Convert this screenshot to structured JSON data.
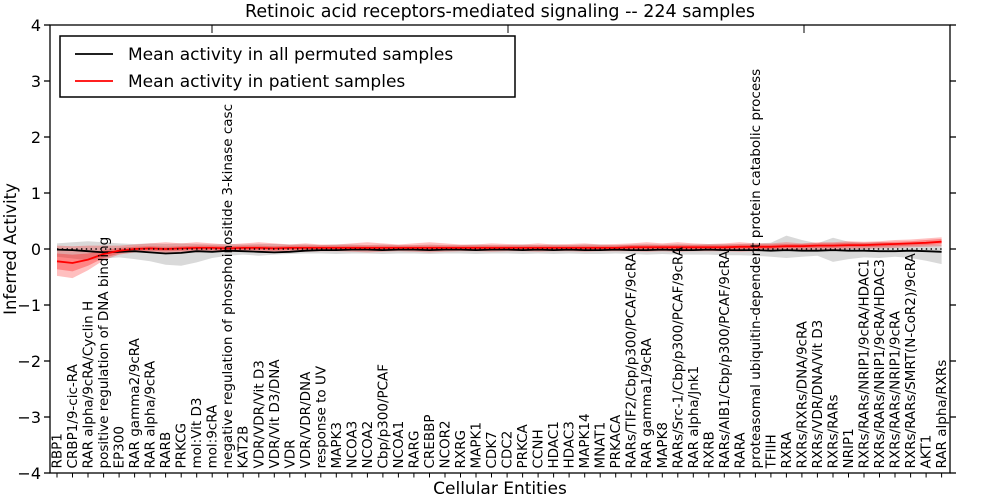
{
  "chart_data": {
    "type": "line",
    "title": "Retinoic acid receptors-mediated signaling -- 224 samples",
    "xlabel": "Cellular Entities",
    "ylabel": "Inferred Activity",
    "ylim": [
      -4,
      4
    ],
    "ytick_labels": [
      "4",
      "3",
      "2",
      "1",
      "0",
      "−1",
      "−2",
      "−3",
      "−4"
    ],
    "grid": false,
    "legend_position": "upper left",
    "legend": [
      "Mean activity in all permuted samples",
      "Mean activity in patient samples"
    ],
    "colors": {
      "permuted": "#000000",
      "patient": "#ff0000",
      "permuted_band": "#000000",
      "patient_band": "#ff0000",
      "zero_line": "#000000",
      "frame": "#000000",
      "background": "#ffffff"
    },
    "categories": [
      "RBP1",
      "CRBP1/9-cic-RA",
      "RAR alpha/9cRA/Cyclin H",
      "positive regulation of DNA binding",
      "EP300",
      "RAR gamma2/9cRA",
      "RAR alpha/9cRA",
      "RARB",
      "PRKCG",
      "mol:Vit D3",
      "mol:9cRA",
      "negative regulation of phosphoinositide 3-kinase casc",
      "KAT2B",
      "VDR/VDR/Vit D3",
      "VDR/Vit D3/DNA",
      "VDR",
      "VDR/VDR/DNA",
      "response to UV",
      "MAPK3",
      "NCOA3",
      "NCOA2",
      "Cbp/p300/PCAF",
      "NCOA1",
      "RARG",
      "CREBBP",
      "NCOR2",
      "RXRG",
      "MAPK1",
      "CDK7",
      "CDC2",
      "PRKCA",
      "CCNH",
      "HDAC1",
      "HDAC3",
      "MAPK14",
      "MNAT1",
      "PRKACA",
      "RARs/TIF2/Cbp/p300/PCAF/9cRA",
      "RAR gamma1/9cRA",
      "MAPK8",
      "RARs/Src-1/Cbp/p300/PCAF/9cRA",
      "RAR alpha/Jnk1",
      "RXRB",
      "RARs/AIB1/Cbp/p300/PCAF/9cRA",
      "RARA",
      "proteasomal ubiquitin-dependent protein catabolic process",
      "TFIIH",
      "RXRA",
      "RXRs/RXRs/DNA/9cRA",
      "RXRs/VDR/DNA/Vit D3",
      "RXRs/RARs",
      "NRIP1",
      "RXRs/RARs/NRIP1/9cRA/HDAC1",
      "RXRs/RARs/NRIP1/9cRA/HDAC3",
      "RXRs/RARs/NRIP1/9cRA",
      "RXRs/RARs/SMRT(N-CoR2)/9cRA",
      "AKT1",
      "RAR alpha/RXRs"
    ],
    "series": [
      {
        "name": "Mean activity in all permuted samples",
        "color": "#000000",
        "values": [
          -0.01,
          -0.02,
          -0.04,
          -0.06,
          -0.05,
          -0.04,
          -0.06,
          -0.08,
          -0.07,
          -0.04,
          -0.05,
          -0.03,
          -0.04,
          -0.05,
          -0.06,
          -0.05,
          -0.03,
          -0.02,
          -0.02,
          -0.01,
          -0.01,
          -0.02,
          -0.01,
          -0.01,
          -0.02,
          -0.01,
          -0.01,
          -0.02,
          -0.01,
          -0.01,
          -0.02,
          -0.01,
          -0.02,
          -0.01,
          -0.02,
          -0.02,
          -0.01,
          -0.02,
          -0.02,
          -0.01,
          -0.02,
          -0.02,
          -0.01,
          -0.02,
          -0.02,
          -0.02,
          -0.03,
          -0.02,
          -0.03,
          -0.03,
          -0.02,
          -0.03,
          -0.03,
          -0.04,
          -0.04,
          -0.03,
          -0.04,
          -0.05
        ]
      },
      {
        "name": "Mean activity in patient samples",
        "color": "#ff0000",
        "values": [
          -0.22,
          -0.25,
          -0.19,
          -0.09,
          -0.03,
          0.0,
          0.01,
          0.0,
          0.01,
          0.02,
          0.02,
          0.01,
          0.02,
          0.02,
          0.01,
          0.02,
          0.02,
          0.02,
          0.02,
          0.02,
          0.02,
          0.02,
          0.02,
          0.02,
          0.02,
          0.02,
          0.02,
          0.02,
          0.02,
          0.02,
          0.02,
          0.02,
          0.02,
          0.02,
          0.02,
          0.02,
          0.02,
          0.03,
          0.03,
          0.03,
          0.03,
          0.03,
          0.03,
          0.03,
          0.04,
          0.04,
          0.04,
          0.05,
          0.05,
          0.06,
          0.06,
          0.07,
          0.07,
          0.08,
          0.09,
          0.1,
          0.11,
          0.13
        ]
      }
    ],
    "bands": {
      "permuted": {
        "upper": [
          0.1,
          0.12,
          0.14,
          0.12,
          0.1,
          0.09,
          0.1,
          0.09,
          0.1,
          0.09,
          0.08,
          0.09,
          0.08,
          0.09,
          0.09,
          0.08,
          0.08,
          0.07,
          0.08,
          0.08,
          0.07,
          0.08,
          0.07,
          0.07,
          0.08,
          0.07,
          0.07,
          0.08,
          0.07,
          0.07,
          0.08,
          0.07,
          0.08,
          0.07,
          0.08,
          0.08,
          0.07,
          0.08,
          0.09,
          0.08,
          0.09,
          0.08,
          0.09,
          0.09,
          0.09,
          0.1,
          0.11,
          0.24,
          0.16,
          0.1,
          0.2,
          0.13,
          0.11,
          0.12,
          0.1,
          0.09,
          0.08,
          0.08
        ],
        "lower": [
          -0.14,
          -0.17,
          -0.2,
          -0.17,
          -0.15,
          -0.18,
          -0.22,
          -0.28,
          -0.3,
          -0.24,
          -0.16,
          -0.12,
          -0.1,
          -0.12,
          -0.1,
          -0.09,
          -0.08,
          -0.08,
          -0.09,
          -0.08,
          -0.08,
          -0.09,
          -0.08,
          -0.08,
          -0.09,
          -0.08,
          -0.08,
          -0.09,
          -0.08,
          -0.08,
          -0.09,
          -0.08,
          -0.09,
          -0.08,
          -0.09,
          -0.09,
          -0.08,
          -0.09,
          -0.1,
          -0.09,
          -0.1,
          -0.1,
          -0.1,
          -0.11,
          -0.11,
          -0.12,
          -0.14,
          -0.16,
          -0.14,
          -0.12,
          -0.23,
          -0.18,
          -0.15,
          -0.16,
          -0.14,
          -0.16,
          -0.21,
          -0.27
        ]
      },
      "patient_outer": {
        "upper": [
          0.06,
          0.05,
          0.06,
          0.06,
          0.06,
          0.08,
          0.1,
          0.12,
          0.1,
          0.12,
          0.1,
          0.08,
          0.1,
          0.12,
          0.1,
          0.08,
          0.1,
          0.08,
          0.08,
          0.1,
          0.12,
          0.1,
          0.08,
          0.1,
          0.12,
          0.1,
          0.08,
          0.08,
          0.1,
          0.09,
          0.08,
          0.1,
          0.08,
          0.09,
          0.1,
          0.08,
          0.09,
          0.1,
          0.12,
          0.1,
          0.12,
          0.1,
          0.09,
          0.1,
          0.12,
          0.1,
          0.1,
          0.12,
          0.1,
          0.12,
          0.12,
          0.14,
          0.13,
          0.14,
          0.16,
          0.17,
          0.19,
          0.21
        ],
        "lower": [
          -0.48,
          -0.52,
          -0.38,
          -0.2,
          -0.1,
          -0.06,
          -0.06,
          -0.08,
          -0.06,
          -0.06,
          -0.05,
          -0.05,
          -0.05,
          -0.06,
          -0.06,
          -0.05,
          -0.05,
          -0.04,
          -0.04,
          -0.05,
          -0.06,
          -0.05,
          -0.04,
          -0.05,
          -0.06,
          -0.05,
          -0.04,
          -0.04,
          -0.05,
          -0.04,
          -0.04,
          -0.05,
          -0.04,
          -0.04,
          -0.05,
          -0.04,
          -0.04,
          -0.04,
          -0.05,
          -0.04,
          -0.05,
          -0.04,
          -0.04,
          -0.04,
          -0.05,
          -0.04,
          -0.03,
          -0.02,
          -0.02,
          -0.01,
          -0.01,
          0.0,
          0.0,
          0.01,
          0.02,
          0.03,
          0.04,
          0.05
        ]
      },
      "patient_inner": {
        "upper": [
          -0.08,
          -0.1,
          -0.08,
          -0.02,
          0.02,
          0.04,
          0.05,
          0.04,
          0.05,
          0.06,
          0.06,
          0.05,
          0.06,
          0.06,
          0.05,
          0.06,
          0.06,
          0.06,
          0.06,
          0.06,
          0.06,
          0.06,
          0.06,
          0.06,
          0.06,
          0.06,
          0.06,
          0.06,
          0.06,
          0.06,
          0.06,
          0.06,
          0.06,
          0.06,
          0.06,
          0.06,
          0.06,
          0.07,
          0.07,
          0.07,
          0.07,
          0.07,
          0.07,
          0.07,
          0.08,
          0.08,
          0.08,
          0.09,
          0.09,
          0.1,
          0.1,
          0.11,
          0.11,
          0.12,
          0.13,
          0.14,
          0.16,
          0.18
        ],
        "lower": [
          -0.36,
          -0.4,
          -0.3,
          -0.16,
          -0.08,
          -0.04,
          -0.03,
          -0.04,
          -0.03,
          -0.02,
          -0.02,
          -0.03,
          -0.02,
          -0.02,
          -0.03,
          -0.02,
          -0.02,
          -0.02,
          -0.02,
          -0.02,
          -0.02,
          -0.02,
          -0.02,
          -0.02,
          -0.02,
          -0.02,
          -0.02,
          -0.02,
          -0.02,
          -0.02,
          -0.02,
          -0.02,
          -0.02,
          -0.02,
          -0.02,
          -0.02,
          -0.02,
          -0.01,
          -0.01,
          -0.01,
          -0.01,
          -0.01,
          -0.01,
          -0.01,
          0.0,
          0.0,
          0.0,
          0.01,
          0.01,
          0.02,
          0.02,
          0.03,
          0.03,
          0.04,
          0.05,
          0.06,
          0.07,
          0.09
        ]
      }
    }
  }
}
